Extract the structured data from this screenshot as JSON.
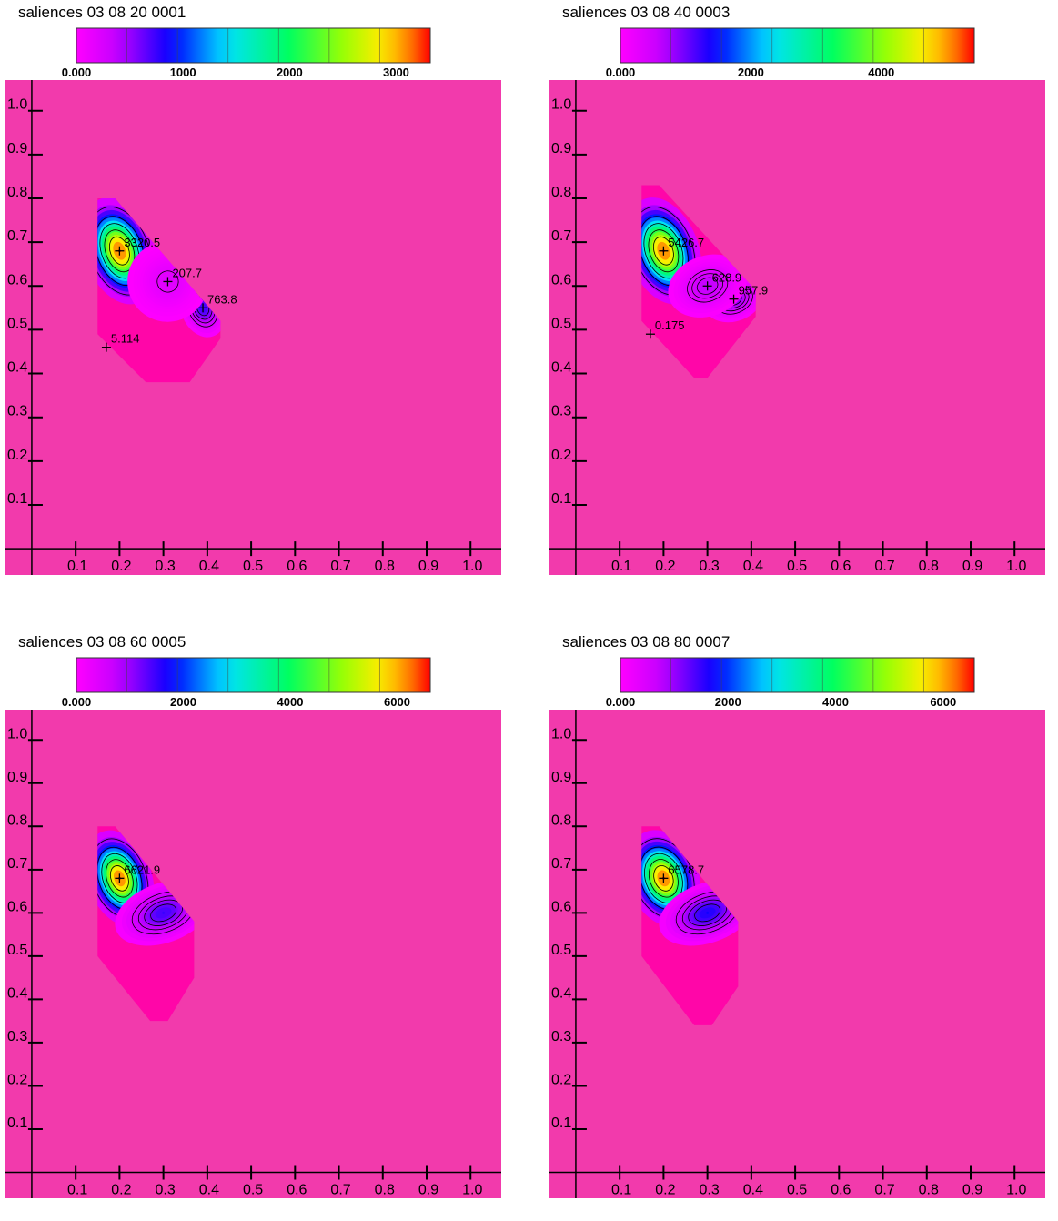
{
  "chart_data": [
    {
      "type": "heatmap",
      "title": "saliences 03 08 20 0001",
      "colorbar": {
        "min": 0,
        "max": 3320.5,
        "tick_values": [
          0,
          1000,
          2000,
          3000
        ],
        "tick_labels": [
          "0.000",
          "1000",
          "2000",
          "3000"
        ]
      },
      "x_ticks": [
        "0.1",
        "0.2",
        "0.3",
        "0.4",
        "0.5",
        "0.6",
        "0.7",
        "0.8",
        "0.9",
        "1.0"
      ],
      "y_ticks": [
        "0.1",
        "0.2",
        "0.3",
        "0.4",
        "0.5",
        "0.6",
        "0.7",
        "0.8",
        "0.9",
        "1.0"
      ],
      "xlim": [
        -0.06,
        1.07
      ],
      "ylim": [
        -0.06,
        1.07
      ],
      "region": [
        [
          0.15,
          0.8
        ],
        [
          0.19,
          0.8
        ],
        [
          0.43,
          0.52
        ],
        [
          0.43,
          0.48
        ],
        [
          0.36,
          0.38
        ],
        [
          0.26,
          0.38
        ],
        [
          0.15,
          0.49
        ]
      ],
      "peaks": [
        {
          "x": 0.2,
          "y": 0.68,
          "value": 3320.5,
          "label": "3320.5",
          "sx": 0.035,
          "sy": 0.055
        },
        {
          "x": 0.39,
          "y": 0.55,
          "value": 763.8,
          "label": "763.8",
          "sx": 0.022,
          "sy": 0.03
        },
        {
          "x": 0.31,
          "y": 0.61,
          "value": 207.7,
          "label": "207.7",
          "sx": 0.04,
          "sy": 0.04
        },
        {
          "x": 0.17,
          "y": 0.46,
          "value": 5.114,
          "label": "5.114",
          "sx": 0.03,
          "sy": 0.03
        }
      ]
    },
    {
      "type": "heatmap",
      "title": "saliences 03 08 40 0003",
      "colorbar": {
        "min": 0,
        "max": 5426.7,
        "tick_values": [
          0,
          2000,
          4000
        ],
        "tick_labels": [
          "0.000",
          "2000",
          "4000"
        ]
      },
      "x_ticks": [
        "0.1",
        "0.2",
        "0.3",
        "0.4",
        "0.5",
        "0.6",
        "0.7",
        "0.8",
        "0.9",
        "1.0"
      ],
      "y_ticks": [
        "0.1",
        "0.2",
        "0.3",
        "0.4",
        "0.5",
        "0.6",
        "0.7",
        "0.8",
        "0.9",
        "1.0"
      ],
      "xlim": [
        -0.06,
        1.07
      ],
      "ylim": [
        -0.06,
        1.07
      ],
      "region": [
        [
          0.15,
          0.83
        ],
        [
          0.19,
          0.83
        ],
        [
          0.41,
          0.59
        ],
        [
          0.41,
          0.53
        ],
        [
          0.3,
          0.39
        ],
        [
          0.27,
          0.39
        ],
        [
          0.15,
          0.52
        ]
      ],
      "peaks": [
        {
          "x": 0.2,
          "y": 0.68,
          "value": 5426.7,
          "label": "5426.7",
          "sx": 0.035,
          "sy": 0.055
        },
        {
          "x": 0.36,
          "y": 0.57,
          "value": 957.9,
          "label": "957.9",
          "sx": 0.03,
          "sy": 0.022
        },
        {
          "x": 0.3,
          "y": 0.6,
          "value": 628.9,
          "label": "628.9",
          "sx": 0.04,
          "sy": 0.03
        },
        {
          "x": 0.17,
          "y": 0.49,
          "value": 0.175,
          "label": "0.175",
          "sx": 0.03,
          "sy": 0.03
        }
      ]
    },
    {
      "type": "heatmap",
      "title": "saliences 03 08 60 0005",
      "colorbar": {
        "min": 0,
        "max": 6621.9,
        "tick_values": [
          0,
          2000,
          4000,
          6000
        ],
        "tick_labels": [
          "0.000",
          "2000",
          "4000",
          "6000"
        ]
      },
      "x_ticks": [
        "0.1",
        "0.2",
        "0.3",
        "0.4",
        "0.5",
        "0.6",
        "0.7",
        "0.8",
        "0.9",
        "1.0"
      ],
      "y_ticks": [
        "0.1",
        "0.2",
        "0.3",
        "0.4",
        "0.5",
        "0.6",
        "0.7",
        "0.8",
        "0.9",
        "1.0"
      ],
      "xlim": [
        -0.06,
        1.07
      ],
      "ylim": [
        -0.06,
        1.07
      ],
      "region": [
        [
          0.15,
          0.8
        ],
        [
          0.19,
          0.8
        ],
        [
          0.37,
          0.58
        ],
        [
          0.37,
          0.45
        ],
        [
          0.31,
          0.35
        ],
        [
          0.27,
          0.35
        ],
        [
          0.15,
          0.5
        ]
      ],
      "peaks": [
        {
          "x": 0.2,
          "y": 0.68,
          "value": 6621.9,
          "label": "6621.9",
          "sx": 0.032,
          "sy": 0.05
        },
        {
          "x": 0.3,
          "y": 0.6,
          "value": 1500,
          "label": "",
          "sx": 0.05,
          "sy": 0.03
        }
      ]
    },
    {
      "type": "heatmap",
      "title": "saliences 03 08 80 0007",
      "colorbar": {
        "min": 0,
        "max": 6578.7,
        "tick_values": [
          0,
          2000,
          4000,
          6000
        ],
        "tick_labels": [
          "0.000",
          "2000",
          "4000",
          "6000"
        ]
      },
      "x_ticks": [
        "0.1",
        "0.2",
        "0.3",
        "0.4",
        "0.5",
        "0.6",
        "0.7",
        "0.8",
        "0.9",
        "1.0"
      ],
      "y_ticks": [
        "0.1",
        "0.2",
        "0.3",
        "0.4",
        "0.5",
        "0.6",
        "0.7",
        "0.8",
        "0.9",
        "1.0"
      ],
      "xlim": [
        -0.06,
        1.07
      ],
      "ylim": [
        -0.06,
        1.07
      ],
      "region": [
        [
          0.15,
          0.8
        ],
        [
          0.19,
          0.8
        ],
        [
          0.37,
          0.58
        ],
        [
          0.37,
          0.43
        ],
        [
          0.31,
          0.34
        ],
        [
          0.27,
          0.34
        ],
        [
          0.15,
          0.5
        ]
      ],
      "peaks": [
        {
          "x": 0.2,
          "y": 0.68,
          "value": 6578.7,
          "label": "6578.7",
          "sx": 0.035,
          "sy": 0.05
        },
        {
          "x": 0.3,
          "y": 0.6,
          "value": 1700,
          "label": "",
          "sx": 0.05,
          "sy": 0.03
        }
      ]
    }
  ]
}
